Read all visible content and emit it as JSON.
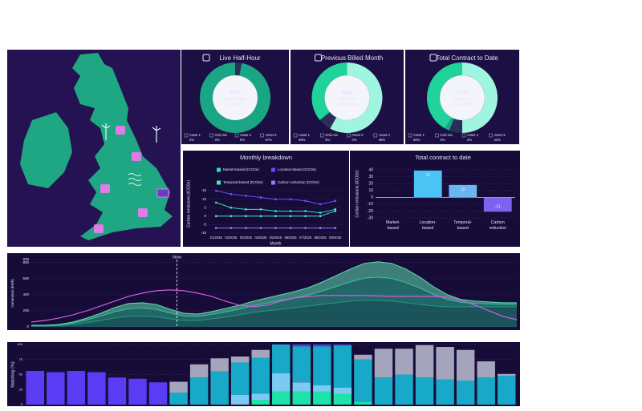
{
  "chart_data": [
    {
      "type": "donut",
      "title": "Live Half-Hour",
      "center_text": "97%",
      "caption": [
        "of consumption",
        "available"
      ],
      "categories": [
        "Asset 1",
        "Grid mix",
        "Asset 2",
        "Asset 3"
      ],
      "values": [
        0,
        3,
        0,
        97
      ],
      "value_labels": [
        "0%",
        "3%",
        "0%",
        "97%"
      ],
      "colors": [
        "#9ff5df",
        "#2a2f58",
        "#2de0a0",
        "#1aa585"
      ]
    },
    {
      "type": "donut",
      "title": "Previous Billed Month",
      "center_text": "68%",
      "caption": [
        "matched",
        "consumption"
      ],
      "categories": [
        "Asset 1",
        "Grid mix",
        "Asset 2",
        "Asset 3"
      ],
      "values": [
        58,
        6,
        0,
        36
      ],
      "value_labels": [
        "58%",
        "6%",
        "0%",
        "36%"
      ],
      "colors": [
        "#9ff5df",
        "#2a2f58",
        "#2de0a0",
        "#1fd39a"
      ]
    },
    {
      "type": "donut",
      "title": "Total Contract to Date",
      "center_text": "72%",
      "caption": [
        "matched",
        "consumption"
      ],
      "categories": [
        "Asset 1",
        "Grid mix",
        "Asset 2",
        "Asset 3"
      ],
      "values": [
        50,
        6,
        2,
        42
      ],
      "value_labels": [
        "50%",
        "6%",
        "2%",
        "42%"
      ],
      "colors": [
        "#9ff5df",
        "#2a2f58",
        "#1aa585",
        "#1fd39a"
      ]
    },
    {
      "type": "line",
      "title": "Monthly breakdown",
      "xlabel": "Month",
      "ylabel": "Carbon emissions (tCO2e)",
      "categories": [
        "01/2025",
        "02/2025",
        "03/2025",
        "04/2025",
        "05/2025",
        "06/2025",
        "07/2025",
        "08/2025",
        "09/2025"
      ],
      "series": [
        {
          "name": "Market-based (tCO2e)",
          "color": "#2de0c0",
          "values": [
            8,
            5,
            4,
            4,
            3,
            3,
            3,
            2,
            4
          ]
        },
        {
          "name": "Location-based (tCO2e)",
          "color": "#6a4cff",
          "values": [
            15,
            13,
            12,
            11,
            10,
            10,
            9,
            7,
            9
          ]
        },
        {
          "name": "Temporal-based (tCO2e)",
          "color": "#40e8c8",
          "values": [
            0,
            0,
            0,
            0,
            0,
            0,
            0,
            0,
            3
          ]
        },
        {
          "name": "Carbon reduction (tCO2e)",
          "color": "#8f7cff",
          "values": [
            -7,
            -7,
            -7,
            -7,
            -7,
            -7,
            -7,
            -7,
            -7
          ]
        }
      ],
      "ylim": [
        -10,
        15
      ],
      "yticks": [
        -10,
        -5,
        0,
        5,
        10,
        15
      ],
      "grid": true
    },
    {
      "type": "bar",
      "title": "Total contract to date",
      "ylabel": "Carbon emissions (tCO2e)",
      "categories": [
        "Market-based",
        "Location-based",
        "Temporal-based",
        "Carbon reduction"
      ],
      "values": [
        0,
        39,
        18,
        -21
      ],
      "colors": [
        "#6ad0f0",
        "#4cc3f5",
        "#6ab6ee",
        "#7b63ee"
      ],
      "ylim": [
        -30,
        40
      ],
      "yticks": [
        -30,
        -20,
        -10,
        0,
        10,
        20,
        30,
        40
      ],
      "grid": true
    },
    {
      "type": "area",
      "ylabel": "Generation (kWh)",
      "series": [
        {
          "kind": "area",
          "color": "#1f8f78",
          "values": [
            10,
            10,
            15,
            30,
            50,
            80,
            110,
            130,
            135,
            125,
            100,
            80,
            80,
            100,
            120,
            150,
            180,
            200,
            220,
            240,
            260,
            280,
            300,
            320,
            330,
            330,
            320,
            300,
            280,
            260,
            250,
            250,
            250,
            250,
            250,
            250
          ]
        },
        {
          "kind": "area",
          "color": "#2bb38f",
          "values": [
            6,
            6,
            9,
            18,
            36,
            54,
            78,
            96,
            99,
            93,
            72,
            54,
            48,
            54,
            66,
            72,
            84,
            96,
            108,
            120,
            138,
            168,
            204,
            240,
            276,
            288,
            282,
            252,
            204,
            144,
            90,
            54,
            42,
            36,
            30,
            30
          ]
        },
        {
          "kind": "area",
          "color": "#5fe0b0",
          "values": [
            4,
            4,
            6,
            12,
            24,
            36,
            52,
            64,
            66,
            62,
            48,
            36,
            32,
            36,
            44,
            48,
            56,
            64,
            72,
            80,
            92,
            112,
            136,
            160,
            184,
            192,
            188,
            168,
            136,
            96,
            60,
            36,
            28,
            24,
            20,
            20
          ]
        },
        {
          "kind": "line",
          "color": "#d05ce0",
          "values": [
            60,
            80,
            110,
            150,
            200,
            260,
            320,
            380,
            420,
            450,
            460,
            450,
            420,
            380,
            320,
            270,
            250,
            270,
            320,
            360,
            380,
            390,
            390,
            390,
            390,
            385,
            380,
            380,
            380,
            380,
            370,
            330,
            270,
            200,
            130,
            90
          ]
        }
      ],
      "annotations": [
        {
          "text": "Now",
          "x": 10.5
        }
      ],
      "ylim": [
        0,
        838
      ],
      "yticks": [
        0,
        200,
        400,
        600,
        800,
        838
      ],
      "grid": true
    },
    {
      "type": "stacked-bar",
      "ylabel": "Matching (%)",
      "series": [
        {
          "color": "#1de3a8",
          "values": [
            0,
            0,
            0,
            0,
            0,
            0,
            0,
            0,
            0,
            0,
            0,
            8,
            22,
            22,
            22,
            18,
            5,
            0,
            0,
            0,
            0,
            0,
            0,
            0
          ]
        },
        {
          "color": "#7ccaf2",
          "values": [
            0,
            0,
            0,
            0,
            0,
            0,
            0,
            0,
            0,
            0,
            16,
            10,
            30,
            15,
            10,
            10,
            0,
            0,
            0,
            0,
            0,
            0,
            0,
            0
          ]
        },
        {
          "color": "#17a9c7",
          "values": [
            0,
            0,
            0,
            0,
            0,
            0,
            0,
            20,
            45,
            55,
            54,
            60,
            48,
            60,
            65,
            70,
            70,
            45,
            50,
            45,
            42,
            40,
            45,
            48
          ]
        },
        {
          "color": "#a5a4bd",
          "values": [
            0,
            0,
            0,
            0,
            0,
            0,
            0,
            18,
            22,
            22,
            10,
            13,
            0,
            0,
            0,
            0,
            8,
            48,
            43,
            54,
            54,
            51,
            27,
            3
          ]
        },
        {
          "color": "#5a3cf5",
          "values": [
            56,
            54,
            56,
            54,
            45,
            43,
            37,
            0,
            0,
            0,
            0,
            0,
            0,
            3,
            3,
            2,
            0,
            0,
            0,
            0,
            0,
            0,
            0,
            0
          ]
        }
      ],
      "ylim": [
        0,
        100
      ],
      "yticks": [
        0,
        25,
        50,
        75,
        100
      ],
      "grid": true
    }
  ]
}
